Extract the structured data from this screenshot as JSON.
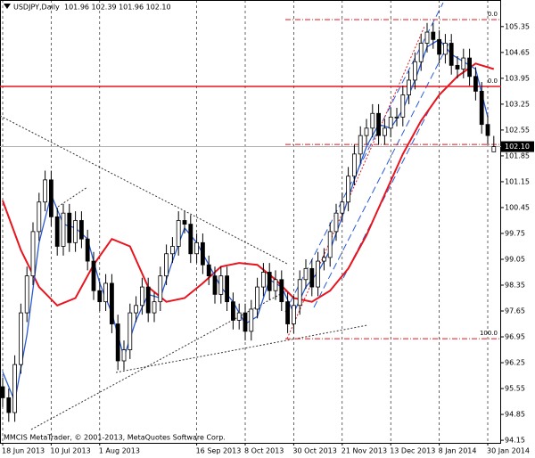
{
  "chart_data": {
    "type": "candlestick",
    "title": "USDJPY,Daily",
    "ohlc_label": "101.96 102.39 101.96 102.10",
    "footer": "MMCIS MetaTrader, © 2001-2013, MetaQuotes Software Corp.",
    "categories": [
      "18 Jun 2013",
      null,
      null,
      null,
      null,
      null,
      null,
      null,
      "10 Jul 2013",
      null,
      null,
      null,
      null,
      null,
      null,
      null,
      "1 Aug 2013",
      null,
      null,
      null,
      null,
      null,
      null,
      null,
      null,
      null,
      null,
      null,
      null,
      null,
      null,
      null,
      "16 Sep 2013",
      null,
      null,
      null,
      null,
      null,
      null,
      null,
      "8 Oct 2013",
      null,
      null,
      null,
      null,
      null,
      null,
      null,
      "30 Oct 2013",
      null,
      null,
      null,
      null,
      null,
      null,
      null,
      "21 Nov 2013",
      null,
      null,
      null,
      null,
      null,
      null,
      null,
      "13 Dec 2013",
      null,
      null,
      null,
      null,
      null,
      null,
      null,
      "8 Jan 2014",
      null,
      null,
      null,
      null,
      null,
      null,
      null,
      "30 Jan 2014",
      null
    ],
    "open": [
      95.6,
      95.3,
      94.9,
      96.2,
      97.6,
      98.6,
      99.8,
      100.6,
      101.2,
      100.2,
      99.4,
      100.3,
      99.5,
      100.1,
      99.6,
      99.0,
      98.2,
      97.9,
      98.4,
      97.3,
      96.3,
      96.6,
      97.6,
      97.8,
      98.3,
      97.6,
      97.9,
      98.6,
      99.2,
      99.4,
      100.1,
      100.0,
      99.2,
      99.5,
      98.9,
      98.6,
      98.1,
      98.6,
      97.9,
      97.4,
      97.6,
      97.1,
      97.7,
      98.3,
      98.7,
      98.2,
      98.5,
      97.9,
      97.3,
      97.8,
      98.5,
      98.8,
      98.3,
      99.0,
      99.1,
      99.8,
      100.3,
      100.6,
      101.3,
      101.9,
      102.4,
      102.6,
      103.0,
      102.4,
      102.6,
      102.9,
      102.9,
      103.5,
      103.9,
      104.4,
      104.9,
      105.2,
      105.0,
      104.6,
      104.9,
      104.3,
      104.2,
      104.5,
      104.0,
      103.6,
      102.7,
      101.96
    ],
    "high": [
      95.85,
      95.55,
      96.45,
      97.85,
      98.85,
      100.05,
      100.85,
      101.45,
      101.45,
      100.45,
      100.55,
      100.55,
      100.35,
      100.35,
      99.85,
      99.25,
      98.45,
      98.65,
      98.65,
      97.55,
      96.85,
      97.85,
      98.05,
      98.55,
      98.55,
      98.15,
      98.85,
      99.45,
      99.65,
      100.35,
      100.35,
      100.25,
      99.75,
      99.75,
      99.15,
      98.85,
      98.85,
      98.85,
      98.15,
      97.85,
      97.85,
      97.95,
      98.55,
      98.95,
      98.95,
      98.75,
      98.75,
      98.15,
      98.05,
      98.75,
      99.05,
      99.05,
      99.25,
      99.35,
      100.05,
      100.55,
      100.85,
      101.55,
      102.15,
      102.65,
      102.85,
      103.25,
      103.25,
      102.85,
      103.15,
      103.15,
      103.75,
      104.15,
      104.65,
      105.15,
      105.45,
      105.45,
      105.25,
      105.15,
      105.15,
      104.55,
      104.75,
      104.75,
      104.25,
      103.85,
      102.95,
      102.39
    ],
    "low": [
      95.05,
      94.65,
      94.65,
      95.95,
      97.35,
      98.35,
      99.55,
      100.35,
      99.95,
      99.15,
      99.15,
      99.25,
      99.25,
      99.35,
      98.75,
      97.95,
      97.65,
      97.65,
      97.05,
      96.05,
      96.05,
      96.35,
      97.35,
      97.55,
      97.35,
      97.35,
      97.65,
      98.35,
      98.95,
      99.15,
      99.75,
      98.95,
      98.95,
      98.65,
      98.35,
      97.85,
      97.85,
      97.65,
      97.15,
      97.15,
      96.85,
      96.85,
      97.45,
      98.05,
      97.95,
      97.95,
      97.65,
      97.05,
      97.05,
      97.55,
      98.25,
      98.05,
      98.05,
      98.75,
      98.85,
      99.55,
      100.05,
      100.35,
      101.05,
      101.65,
      102.15,
      102.35,
      102.15,
      102.15,
      102.35,
      102.65,
      102.65,
      103.25,
      103.65,
      104.15,
      104.65,
      104.75,
      104.35,
      104.35,
      104.05,
      103.95,
      103.95,
      103.75,
      103.35,
      102.45,
      102.15,
      101.96
    ],
    "close": [
      95.3,
      94.9,
      96.2,
      97.6,
      98.6,
      99.8,
      100.6,
      101.2,
      100.2,
      99.4,
      100.3,
      99.5,
      100.1,
      99.6,
      99.0,
      98.2,
      97.9,
      98.4,
      97.3,
      96.3,
      96.6,
      97.6,
      97.8,
      98.3,
      97.6,
      97.9,
      98.6,
      99.2,
      99.4,
      100.1,
      100.0,
      99.2,
      99.5,
      98.9,
      98.6,
      98.1,
      98.6,
      97.9,
      97.4,
      97.6,
      97.1,
      97.7,
      98.3,
      98.7,
      98.2,
      98.5,
      97.9,
      97.3,
      97.8,
      98.5,
      98.8,
      98.3,
      99.0,
      99.1,
      99.8,
      100.3,
      100.6,
      101.3,
      101.9,
      102.4,
      102.6,
      103.0,
      102.4,
      102.6,
      102.9,
      102.9,
      103.5,
      103.9,
      104.4,
      104.9,
      105.2,
      105.0,
      104.6,
      104.9,
      104.3,
      104.2,
      104.5,
      104.0,
      103.6,
      102.7,
      102.4,
      102.1
    ],
    "candle_colors": {
      "up": "#ffffff",
      "down": "#000000",
      "outline": "#000000"
    },
    "overlays": [
      {
        "color": "#e8141e",
        "x": [
          0,
          3,
          6,
          9,
          12,
          15,
          18,
          21,
          24,
          27,
          30,
          33,
          36,
          39,
          42,
          45,
          48,
          51,
          54,
          57,
          60,
          63,
          66,
          69,
          72,
          75,
          78,
          81
        ],
        "values": [
          100.64,
          99.3,
          98.3,
          97.8,
          98.0,
          98.9,
          99.6,
          99.4,
          98.3,
          97.9,
          98.0,
          98.4,
          98.85,
          98.95,
          98.9,
          98.5,
          98.0,
          97.9,
          98.2,
          98.8,
          99.7,
          100.8,
          101.9,
          102.8,
          103.5,
          104.0,
          104.35,
          104.2
        ]
      },
      {
        "color": "#2a5bd7",
        "x": [
          0,
          2,
          4,
          6,
          8,
          10,
          12,
          14,
          16,
          18,
          20,
          22,
          24,
          26,
          28,
          30,
          32,
          34,
          36,
          38,
          40,
          42,
          44,
          46,
          48,
          50,
          52,
          54,
          56,
          58,
          60,
          62,
          64,
          66,
          68,
          70,
          72,
          74,
          76,
          78,
          80
        ],
        "values": [
          96.0,
          95.2,
          97.0,
          99.5,
          100.8,
          100.0,
          99.9,
          99.6,
          98.4,
          97.6,
          96.4,
          97.4,
          98.1,
          98.0,
          99.0,
          99.9,
          99.5,
          98.9,
          98.3,
          97.9,
          97.3,
          97.5,
          98.5,
          98.3,
          97.6,
          98.3,
          98.7,
          99.3,
          100.2,
          101.2,
          102.1,
          102.7,
          102.6,
          103.1,
          103.9,
          104.8,
          105.0,
          104.6,
          104.4,
          104.2,
          102.9
        ]
      }
    ],
    "hline": {
      "value": 103.73,
      "label": "0.0",
      "color": "#e8141e"
    },
    "fib_levels": [
      {
        "value": 105.54,
        "label": "0.0"
      },
      {
        "value": 96.9,
        "label": "100.0"
      }
    ],
    "fib_extra_levels": [
      102.16
    ],
    "fib_color": "#e8141e",
    "price_line": {
      "value": 102.1,
      "label": "102.10"
    },
    "ylim": [
      94.08,
      106.07
    ],
    "yticks": [
      94.15,
      94.85,
      95.55,
      96.25,
      96.95,
      97.65,
      98.35,
      99.05,
      99.75,
      100.45,
      101.15,
      101.85,
      102.55,
      103.25,
      103.95,
      104.65,
      105.35
    ]
  }
}
